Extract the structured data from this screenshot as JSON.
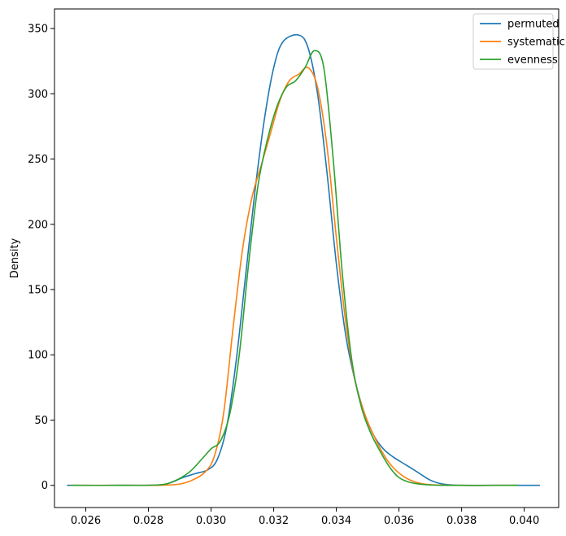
{
  "chart_data": {
    "type": "line",
    "title": "",
    "xlabel": "",
    "ylabel": "Density",
    "xlim": [
      0.025,
      0.0411
    ],
    "ylim": [
      -17,
      365
    ],
    "xticks": [
      0.026,
      0.028,
      0.03,
      0.032,
      0.034,
      0.036,
      0.038,
      0.04
    ],
    "xtick_labels": [
      "0.026",
      "0.028",
      "0.030",
      "0.032",
      "0.034",
      "0.036",
      "0.038",
      "0.040"
    ],
    "yticks": [
      0,
      50,
      100,
      150,
      200,
      250,
      300,
      350
    ],
    "ytick_labels": [
      "0",
      "50",
      "100",
      "150",
      "200",
      "250",
      "300",
      "350"
    ],
    "grid": false,
    "legend_position": "top-right",
    "series": [
      {
        "name": "permuted",
        "color": "#1f77b4",
        "points": [
          [
            0.0254,
            0
          ],
          [
            0.027,
            0
          ],
          [
            0.0283,
            0.3
          ],
          [
            0.0287,
            2
          ],
          [
            0.0291,
            6
          ],
          [
            0.0295,
            9
          ],
          [
            0.0299,
            12
          ],
          [
            0.0302,
            20
          ],
          [
            0.0305,
            45
          ],
          [
            0.0308,
            95
          ],
          [
            0.0311,
            160
          ],
          [
            0.0314,
            225
          ],
          [
            0.0317,
            280
          ],
          [
            0.032,
            320
          ],
          [
            0.0323,
            340
          ],
          [
            0.0328,
            345
          ],
          [
            0.0331,
            335
          ],
          [
            0.0334,
            300
          ],
          [
            0.0337,
            240
          ],
          [
            0.034,
            170
          ],
          [
            0.0343,
            115
          ],
          [
            0.0346,
            80
          ],
          [
            0.0349,
            55
          ],
          [
            0.0352,
            38
          ],
          [
            0.0355,
            28
          ],
          [
            0.0358,
            22
          ],
          [
            0.0362,
            16
          ],
          [
            0.0366,
            10
          ],
          [
            0.037,
            4
          ],
          [
            0.0374,
            1
          ],
          [
            0.038,
            0
          ],
          [
            0.039,
            0
          ],
          [
            0.0405,
            0
          ]
        ]
      },
      {
        "name": "systematic",
        "color": "#ff7f0e",
        "points": [
          [
            0.0256,
            0
          ],
          [
            0.027,
            0
          ],
          [
            0.0284,
            0.1
          ],
          [
            0.029,
            1
          ],
          [
            0.0294,
            4
          ],
          [
            0.0298,
            10
          ],
          [
            0.0301,
            22
          ],
          [
            0.0304,
            55
          ],
          [
            0.0307,
            120
          ],
          [
            0.031,
            180
          ],
          [
            0.0313,
            220
          ],
          [
            0.0316,
            245
          ],
          [
            0.0319,
            270
          ],
          [
            0.0322,
            295
          ],
          [
            0.0325,
            310
          ],
          [
            0.0328,
            315
          ],
          [
            0.0331,
            320
          ],
          [
            0.0334,
            305
          ],
          [
            0.0337,
            260
          ],
          [
            0.034,
            190
          ],
          [
            0.0343,
            125
          ],
          [
            0.0346,
            80
          ],
          [
            0.0349,
            55
          ],
          [
            0.0352,
            38
          ],
          [
            0.0355,
            24
          ],
          [
            0.0358,
            14
          ],
          [
            0.0362,
            6
          ],
          [
            0.0366,
            2
          ],
          [
            0.037,
            0.5
          ],
          [
            0.0378,
            0
          ],
          [
            0.039,
            0
          ],
          [
            0.0398,
            0
          ]
        ]
      },
      {
        "name": "evenness",
        "color": "#2ca02c",
        "points": [
          [
            0.0255,
            0
          ],
          [
            0.027,
            0
          ],
          [
            0.0283,
            0.3
          ],
          [
            0.0288,
            3
          ],
          [
            0.0293,
            10
          ],
          [
            0.0297,
            20
          ],
          [
            0.03,
            28
          ],
          [
            0.0303,
            34
          ],
          [
            0.0306,
            55
          ],
          [
            0.0309,
            100
          ],
          [
            0.0312,
            170
          ],
          [
            0.0315,
            230
          ],
          [
            0.0318,
            265
          ],
          [
            0.0321,
            290
          ],
          [
            0.0324,
            305
          ],
          [
            0.0327,
            310
          ],
          [
            0.033,
            320
          ],
          [
            0.0333,
            333
          ],
          [
            0.0336,
            320
          ],
          [
            0.0339,
            250
          ],
          [
            0.0342,
            160
          ],
          [
            0.0345,
            95
          ],
          [
            0.0348,
            60
          ],
          [
            0.0351,
            40
          ],
          [
            0.0354,
            26
          ],
          [
            0.0357,
            14
          ],
          [
            0.036,
            6
          ],
          [
            0.0364,
            2
          ],
          [
            0.037,
            0.3
          ],
          [
            0.038,
            0
          ],
          [
            0.0398,
            0
          ]
        ]
      }
    ]
  }
}
